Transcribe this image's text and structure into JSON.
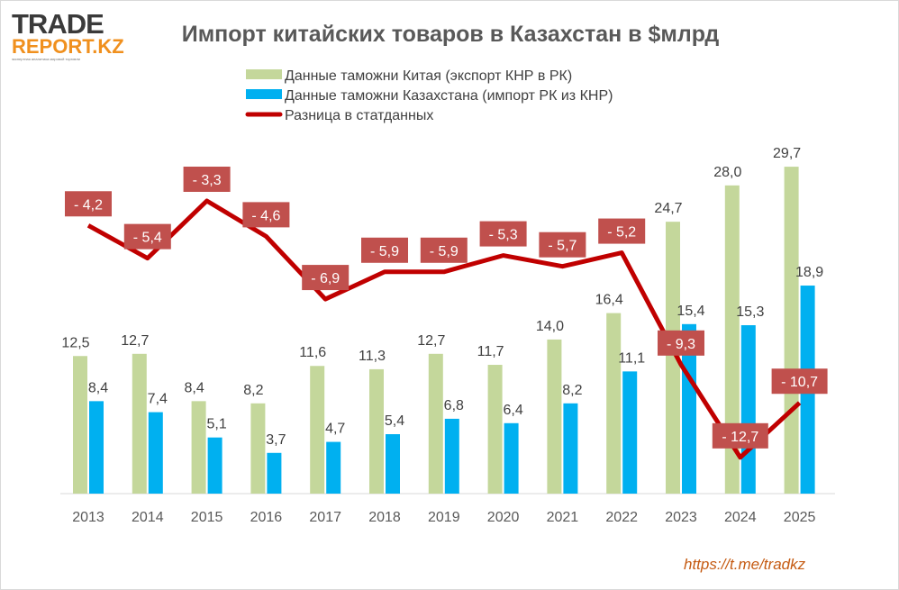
{
  "logo": {
    "line1": "TRADE",
    "line2": "REPORT.KZ",
    "tagline": "экспертная аналитика мировой торговли"
  },
  "footer_link": "https://t.me/tradkz",
  "colors": {
    "china": "#c4d79b",
    "kz": "#00b0f0",
    "diff": "#c00000",
    "label_box": "#c0504d"
  },
  "chart_data": {
    "type": "bar",
    "title": "Импорт китайских товаров в Казахстан  в $млрд",
    "categories": [
      "2013",
      "2014",
      "2015",
      "2016",
      "2017",
      "2018",
      "2019",
      "2020",
      "2021",
      "2022",
      "2023",
      "2024",
      "2025"
    ],
    "legend": [
      "Данные таможни Китая (экспорт КНР в РК)",
      "Данные таможни Казахстана (импорт РК из КНР)",
      "Разница в статданных"
    ],
    "legend_position": "top",
    "series": [
      {
        "name": "Данные таможни Китая (экспорт КНР в РК)",
        "type": "bar",
        "values": [
          12.5,
          12.7,
          8.4,
          8.2,
          11.6,
          11.3,
          12.7,
          11.7,
          14.0,
          16.4,
          24.7,
          28.0,
          29.7
        ],
        "labels": [
          "12,5",
          "12,7",
          "8,4",
          "8,2",
          "11,6",
          "11,3",
          "12,7",
          "11,7",
          "14,0",
          "16,4",
          "24,7",
          "28,0",
          "29,7"
        ]
      },
      {
        "name": "Данные таможни Казахстана (импорт РК из КНР)",
        "type": "bar",
        "values": [
          8.4,
          7.4,
          5.1,
          3.7,
          4.7,
          5.4,
          6.8,
          6.4,
          8.2,
          11.1,
          15.4,
          15.3,
          18.9
        ],
        "labels": [
          "8,4",
          "7,4",
          "5,1",
          "3,7",
          "4,7",
          "5,4",
          "6,8",
          "6,4",
          "8,2",
          "11,1",
          "15,4",
          "15,3",
          "18,9"
        ]
      },
      {
        "name": "Разница в статданных",
        "type": "line",
        "values": [
          -4.2,
          -5.4,
          -3.3,
          -4.6,
          -6.9,
          -5.9,
          -5.9,
          -5.3,
          -5.7,
          -5.2,
          -9.3,
          -12.7,
          -10.7
        ],
        "labels": [
          "- 4,2",
          "- 5,4",
          "- 3,3",
          "- 4,6",
          "- 6,9",
          "- 5,9",
          "- 5,9",
          "- 5,3",
          "- 5,7",
          "- 5,2",
          "- 9,3",
          "- 12,7",
          "- 10,7"
        ]
      }
    ]
  }
}
